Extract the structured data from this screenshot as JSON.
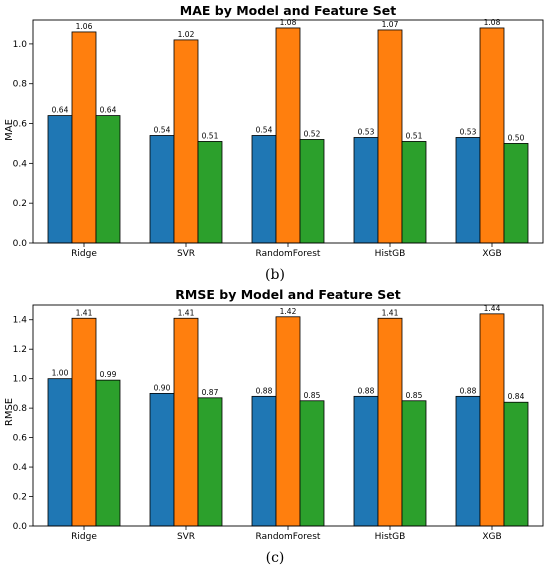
{
  "colors": [
    "#1f77b4",
    "#ff7f0e",
    "#2ca02c"
  ],
  "chart_data": [
    {
      "type": "bar",
      "panel_label": "(b)",
      "title": "MAE by Model and Feature Set",
      "xlabel": "",
      "ylabel": "MAE",
      "ylim": [
        0,
        1.12
      ],
      "yticks": [
        "0.0",
        "0.2",
        "0.4",
        "0.6",
        "0.8",
        "1.0"
      ],
      "categories": [
        "Ridge",
        "SVR",
        "RandomForest",
        "HistGB",
        "XGB"
      ],
      "series": [
        {
          "values": [
            0.64,
            0.54,
            0.54,
            0.53,
            0.53
          ],
          "labels": [
            "0.64",
            "0.54",
            "0.54",
            "0.53",
            "0.53"
          ]
        },
        {
          "values": [
            1.06,
            1.02,
            1.08,
            1.07,
            1.08
          ],
          "labels": [
            "1.06",
            "1.02",
            "1.08",
            "1.07",
            "1.08"
          ]
        },
        {
          "values": [
            0.64,
            0.51,
            0.52,
            0.51,
            0.5
          ],
          "labels": [
            "0.64",
            "0.51",
            "0.52",
            "0.51",
            "0.50"
          ]
        }
      ],
      "grid": false,
      "legend": "none"
    },
    {
      "type": "bar",
      "panel_label": "(c)",
      "title": "RMSE by Model and Feature Set",
      "xlabel": "",
      "ylabel": "RMSE",
      "ylim": [
        0,
        1.5
      ],
      "yticks": [
        "0.0",
        "0.2",
        "0.4",
        "0.6",
        "0.8",
        "1.0",
        "1.2",
        "1.4"
      ],
      "categories": [
        "Ridge",
        "SVR",
        "RandomForest",
        "HistGB",
        "XGB"
      ],
      "series": [
        {
          "values": [
            1.0,
            0.9,
            0.88,
            0.88,
            0.88
          ],
          "labels": [
            "1.00",
            "0.90",
            "0.88",
            "0.88",
            "0.88"
          ]
        },
        {
          "values": [
            1.41,
            1.41,
            1.42,
            1.41,
            1.44
          ],
          "labels": [
            "1.41",
            "1.41",
            "1.42",
            "1.41",
            "1.44"
          ]
        },
        {
          "values": [
            0.99,
            0.87,
            0.85,
            0.85,
            0.84
          ],
          "labels": [
            "0.99",
            "0.87",
            "0.85",
            "0.85",
            "0.84"
          ]
        }
      ],
      "grid": false,
      "legend": "none"
    }
  ]
}
